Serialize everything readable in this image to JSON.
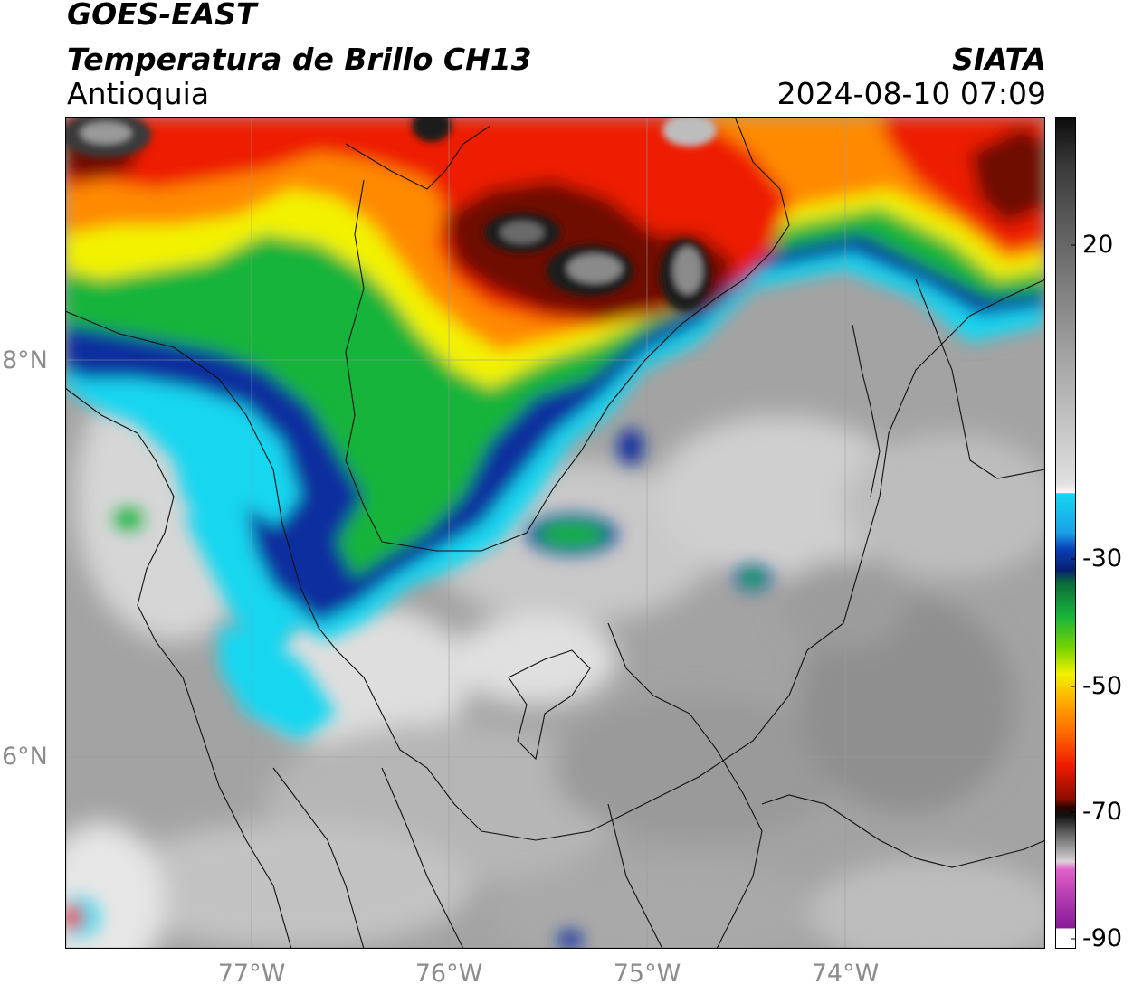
{
  "header": {
    "satellite": "GOES-EAST",
    "product": "Temperatura de Brillo CH13",
    "region": "Antioquia",
    "organization": "SIATA",
    "datetime": "2024-08-10 07:09"
  },
  "map": {
    "lat_range": [
      5.0,
      9.2
    ],
    "lon_range": [
      -77.95,
      -72.98
    ],
    "lat_labels": [
      "8°N",
      "6°N"
    ],
    "lon_labels": [
      "77°W",
      "76°W",
      "75°W",
      "74°W"
    ],
    "grid": true
  },
  "colorbar": {
    "vmin": -90,
    "vmax": 40,
    "tick_labels": [
      "20",
      "-30",
      "-50",
      "-70",
      "-90"
    ],
    "colors": {
      "warm_gray_light": "#f2f2f2",
      "warm_gray_dark": "#5a5a5a",
      "cyan": "#16d6f0",
      "blue": "#0a2f9e",
      "green": "#16b43a",
      "yellow": "#f2f200",
      "orange": "#ff8a00",
      "red": "#ee1b00",
      "dark_red": "#6e0a00",
      "black": "#111111",
      "magenta": "#e040c8",
      "purple": "#8a1a96"
    }
  }
}
